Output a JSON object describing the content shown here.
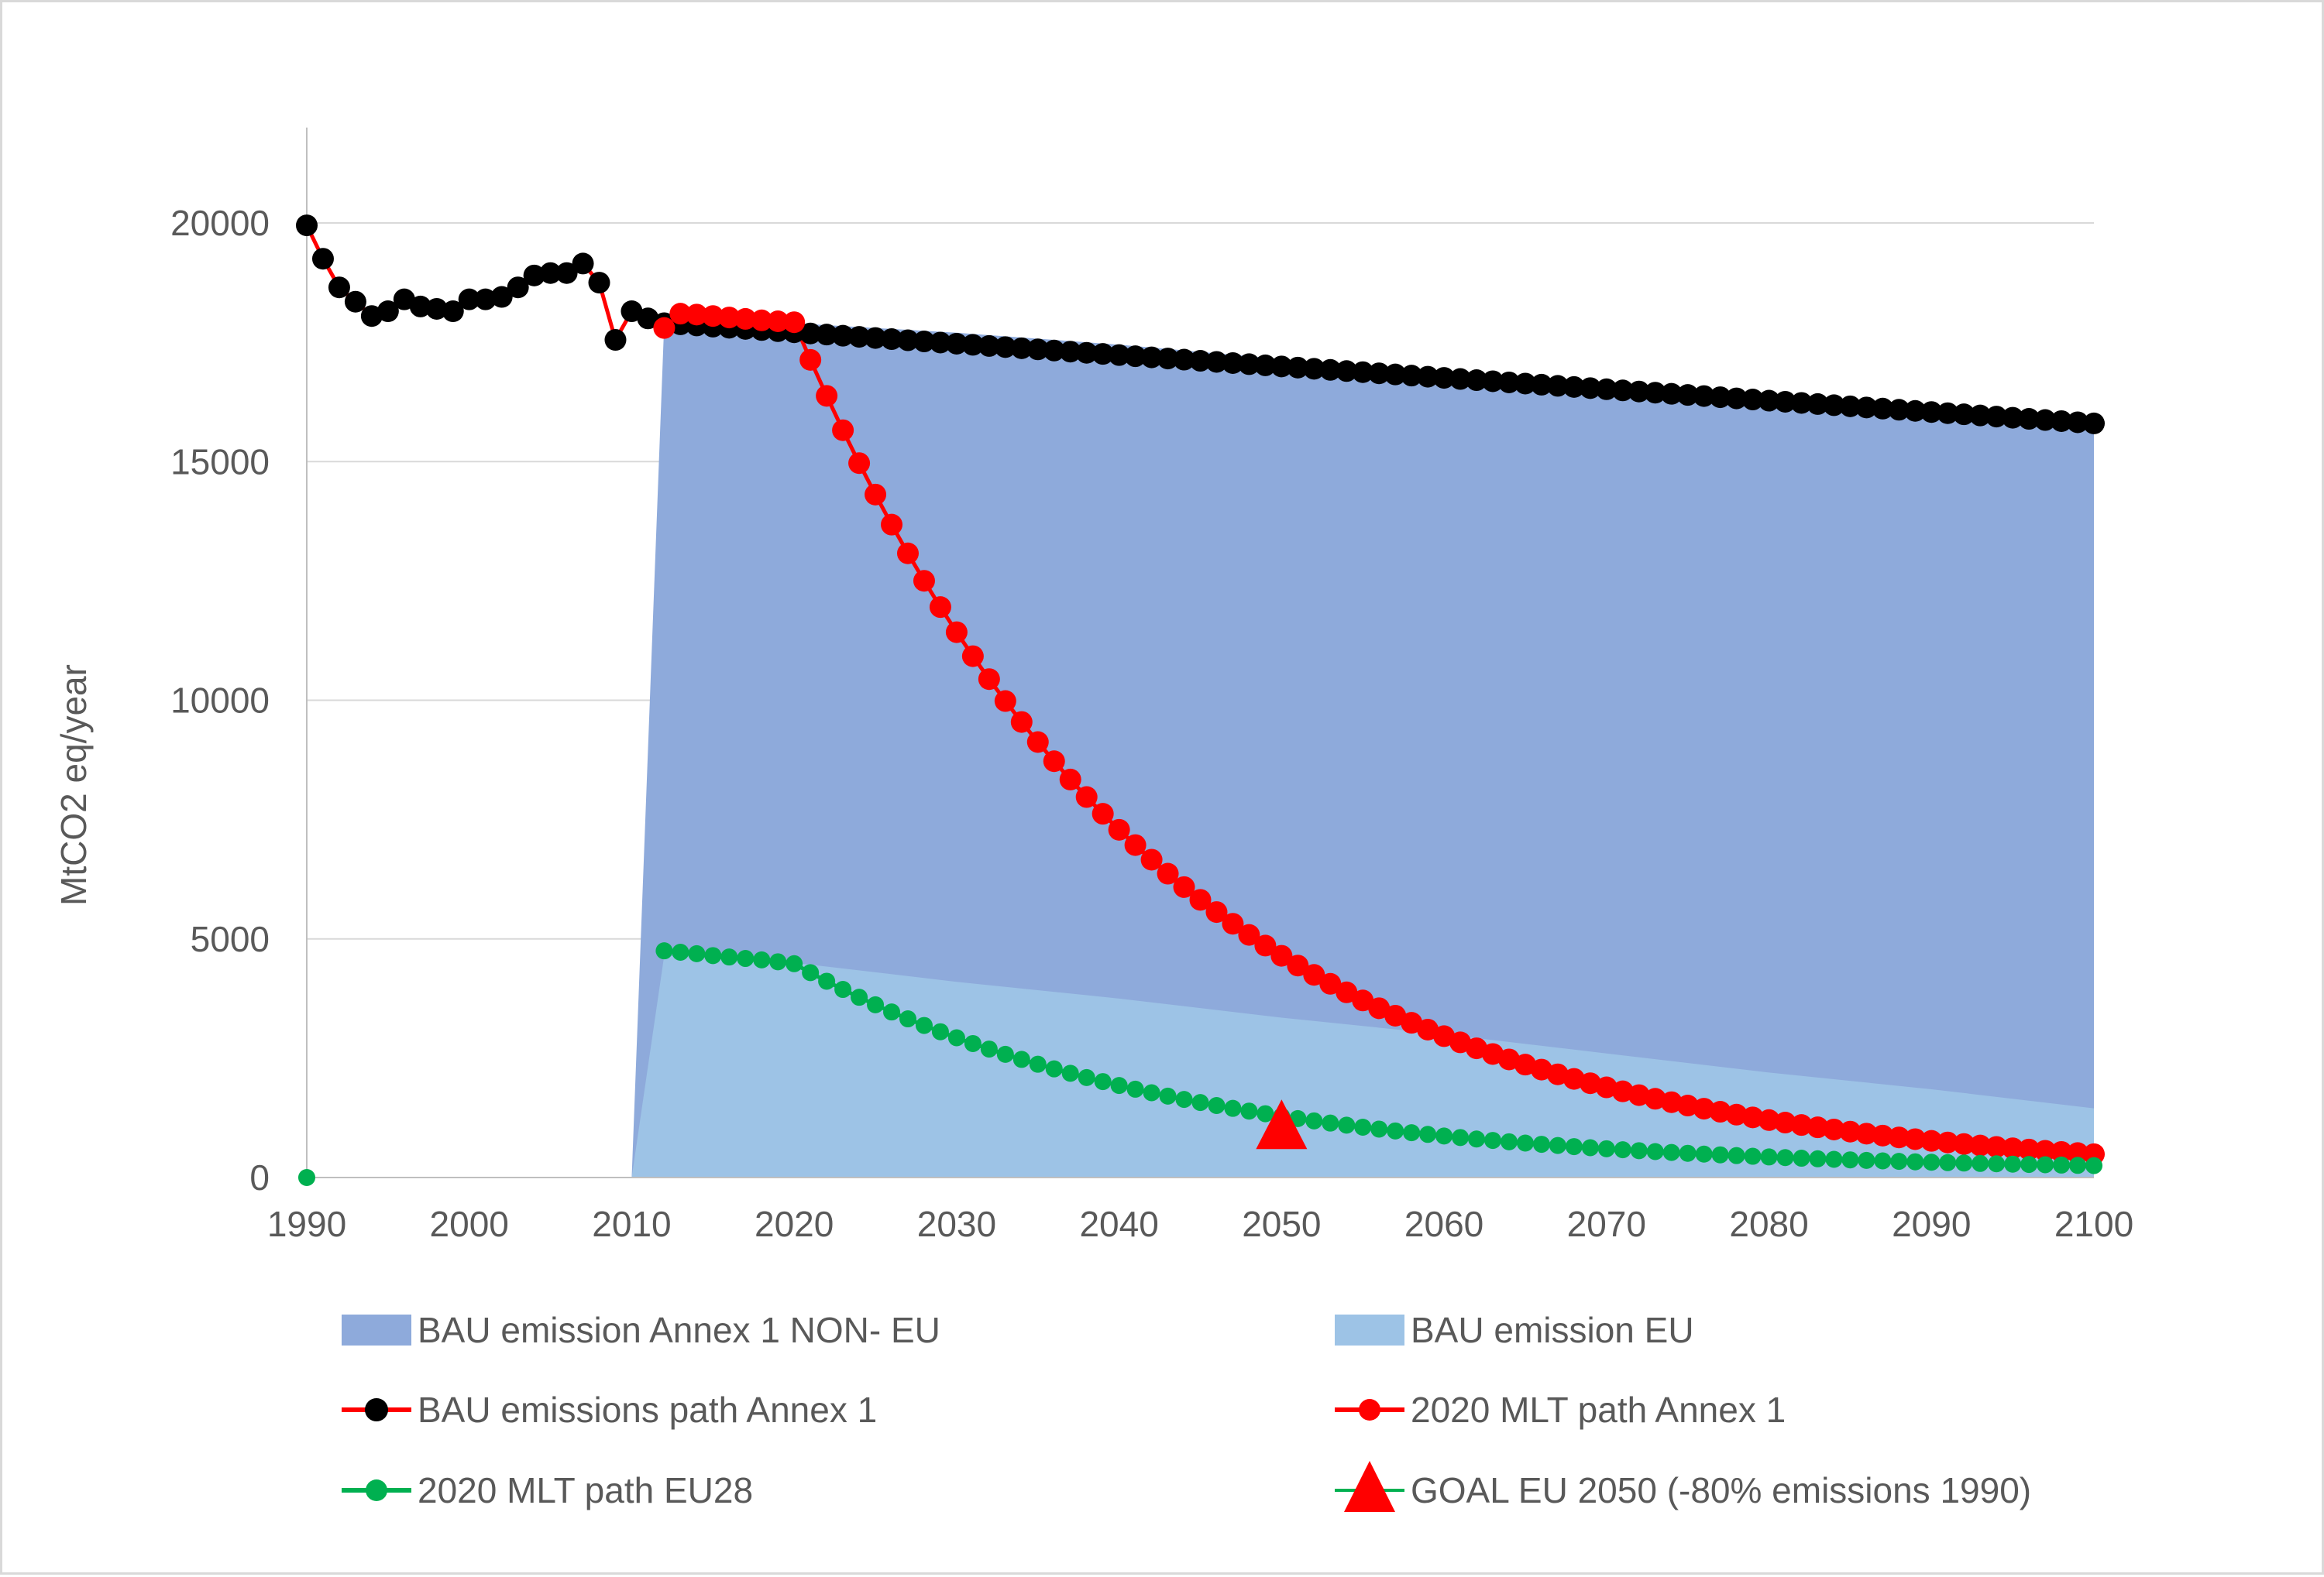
{
  "chart_data": {
    "type": "line",
    "title": "",
    "xlabel": "",
    "ylabel": "MtCO2 eq/year",
    "xlim": [
      1990,
      2100
    ],
    "ylim": [
      0,
      22000
    ],
    "x_ticks": [
      1990,
      2000,
      2010,
      2020,
      2030,
      2040,
      2050,
      2060,
      2070,
      2080,
      2090,
      2100
    ],
    "y_ticks": [
      0,
      5000,
      10000,
      15000,
      20000
    ],
    "grid": "horizontal",
    "legend_position": "bottom",
    "colors": {
      "bau_non_eu_area": "#8eaadb",
      "bau_eu_area": "#9dc3e6",
      "black_marker": "#000000",
      "red": "#ff0000",
      "green": "#00b050",
      "grid": "#d9d9d9",
      "axis": "#bfbfbf",
      "text": "#595959"
    },
    "series": [
      {
        "name": "BAU emission Annex 1 NON- EU",
        "kind": "area",
        "x": [
          2010,
          2012,
          2020,
          2030,
          2040,
          2050,
          2060,
          2070,
          2080,
          2090,
          2100
        ],
        "values": [
          0,
          17900,
          17900,
          17700,
          17450,
          17150,
          16850,
          16600,
          16350,
          16100,
          15850
        ]
      },
      {
        "name": "BAU emission EU",
        "kind": "area",
        "x": [
          2010,
          2012,
          2020,
          2030,
          2040,
          2050,
          2060,
          2070,
          2080,
          2090,
          2100
        ],
        "values": [
          0,
          4650,
          4500,
          4100,
          3750,
          3350,
          3000,
          2600,
          2200,
          1850,
          1450
        ]
      },
      {
        "name": "BAU emissions path Annex 1",
        "kind": "line",
        "line_color": "#ff0000",
        "marker_color": "#000000",
        "historic_x": [
          1990,
          1991,
          1992,
          1993,
          1994,
          1995,
          1996,
          1997,
          1998,
          1999,
          2000,
          2001,
          2002,
          2003,
          2004,
          2005,
          2006,
          2007,
          2008,
          2009,
          2010,
          2011
        ],
        "historic_values": [
          19950,
          19250,
          18650,
          18350,
          18050,
          18150,
          18400,
          18250,
          18200,
          18150,
          18400,
          18400,
          18450,
          18650,
          18900,
          18950,
          18950,
          19150,
          18750,
          17550,
          18150,
          18000
        ],
        "projection": {
          "start": 2012,
          "end": 2100,
          "v_start": 17900,
          "v_end": 15800
        }
      },
      {
        "name": "2020 MLT path Annex 1",
        "kind": "line",
        "line_color": "#ff0000",
        "marker_color": "#ff0000",
        "x": [
          2012,
          2013,
          2014,
          2015,
          2016,
          2017,
          2018,
          2019,
          2020
        ],
        "values": [
          17800,
          18100,
          18080,
          18050,
          18020,
          17990,
          17960,
          17940,
          17920
        ],
        "decay": {
          "start": 2020,
          "end": 2100,
          "v_start": 17920,
          "rate": 0.045
        }
      },
      {
        "name": "2020 MLT path EU28",
        "kind": "line",
        "line_color": "#00b050",
        "marker_color": "#00b050",
        "x": [
          1990,
          2012,
          2013,
          2014,
          2015,
          2016,
          2017,
          2018,
          2019,
          2020
        ],
        "values": [
          0,
          4750,
          4720,
          4690,
          4650,
          4620,
          4590,
          4560,
          4520,
          4480
        ],
        "decay": {
          "start": 2020,
          "end": 2100,
          "v_start": 4480,
          "rate": 0.044,
          "floor": 120
        }
      },
      {
        "name": "GOAL EU 2050 (-80% emissions 1990)",
        "kind": "marker",
        "marker": "triangle",
        "marker_color": "#ff0000",
        "x": [
          2050
        ],
        "values": [
          1050
        ]
      }
    ]
  },
  "legend": {
    "items": [
      {
        "label": "BAU emission Annex 1 NON- EU",
        "symbol": "area",
        "color": "#8eaadb"
      },
      {
        "label": "BAU emission EU",
        "symbol": "area",
        "color": "#9dc3e6"
      },
      {
        "label": "BAU emissions path Annex 1",
        "symbol": "line-marker",
        "color": "#ff0000",
        "marker": "#000000"
      },
      {
        "label": "2020 MLT path Annex 1",
        "symbol": "line-marker",
        "color": "#ff0000",
        "marker": "#ff0000"
      },
      {
        "label": "2020 MLT path EU28",
        "symbol": "line-marker",
        "color": "#00b050",
        "marker": "#00b050"
      },
      {
        "label": "GOAL EU 2050 (-80% emissions 1990)",
        "symbol": "triangle",
        "color": "#00b050",
        "marker": "#ff0000"
      }
    ]
  }
}
